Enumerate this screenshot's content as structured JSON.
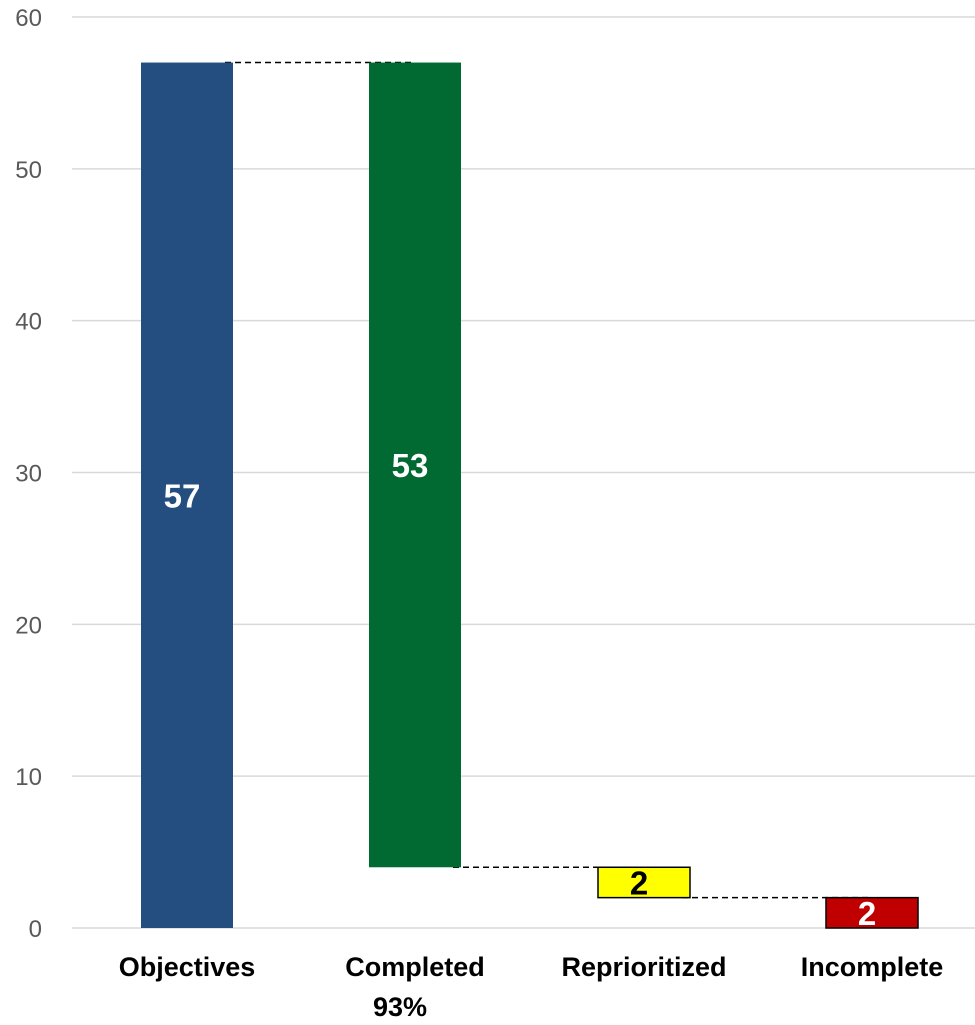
{
  "chart_data": {
    "type": "bar",
    "subtype": "waterfall",
    "categories": [
      "Objectives",
      "Completed",
      "Reprioritized",
      "Incomplete"
    ],
    "category_sublabels": [
      "",
      "93%",
      "",
      ""
    ],
    "values": [
      57,
      53,
      2,
      2
    ],
    "bar_ranges": [
      [
        0,
        57
      ],
      [
        4,
        57
      ],
      [
        2,
        4
      ],
      [
        0,
        2
      ]
    ],
    "data_labels": [
      "57",
      "53",
      "2",
      "2"
    ],
    "colors": [
      "#234e7f",
      "#006a32",
      "#ffff00",
      "#c00000"
    ],
    "data_label_colors": [
      "#ffffff",
      "#ffffff",
      "#000000",
      "#ffffff"
    ],
    "bar_outline": [
      false,
      false,
      true,
      true
    ],
    "connectors": [
      [
        0,
        1,
        57
      ],
      [
        1,
        2,
        4
      ],
      [
        2,
        3,
        2
      ]
    ],
    "y_ticks": [
      0,
      10,
      20,
      30,
      40,
      50,
      60
    ],
    "ylim": [
      0,
      60
    ],
    "grid": true,
    "legend": "none",
    "title": "",
    "xlabel": "",
    "ylabel": ""
  }
}
